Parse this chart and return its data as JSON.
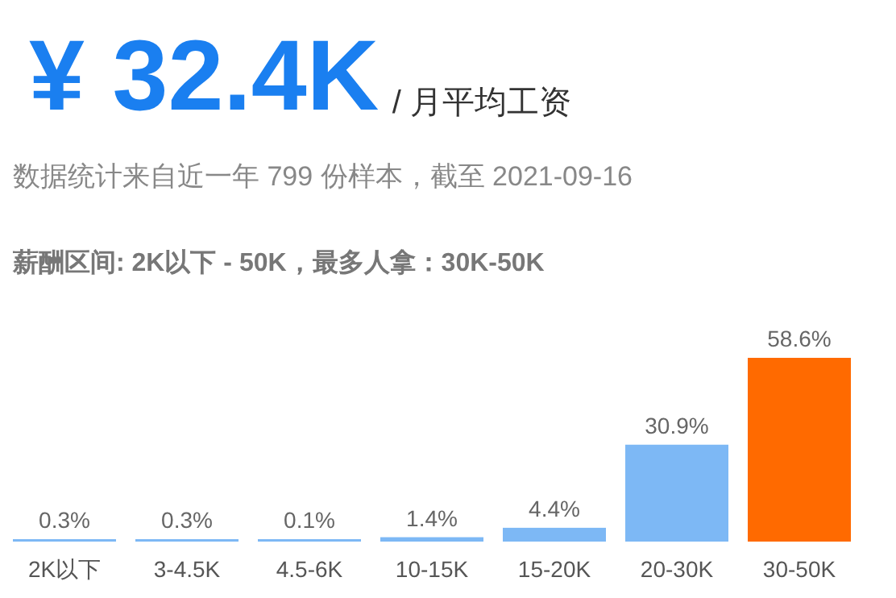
{
  "chart_data": {
    "type": "bar",
    "title": "¥ 32.4K",
    "subtitle": "/ 月平均工资",
    "annotations": [
      "数据统计来自近一年 799 份样本，截至 2021-09-16",
      "薪酬区间: 2K以下 - 50K，最多人拿：30K-50K"
    ],
    "categories": [
      "2K以下",
      "3-4.5K",
      "4.5-6K",
      "10-15K",
      "15-20K",
      "20-30K",
      "30-50K"
    ],
    "values": [
      0.3,
      0.3,
      0.1,
      1.4,
      4.4,
      30.9,
      58.6
    ],
    "value_labels": [
      "0.3%",
      "0.3%",
      "0.1%",
      "1.4%",
      "4.4%",
      "30.9%",
      "58.6%"
    ],
    "colors": [
      "#7db8f5",
      "#7db8f5",
      "#7db8f5",
      "#7db8f5",
      "#7db8f5",
      "#7db8f5",
      "#ff6a00"
    ]
  }
}
